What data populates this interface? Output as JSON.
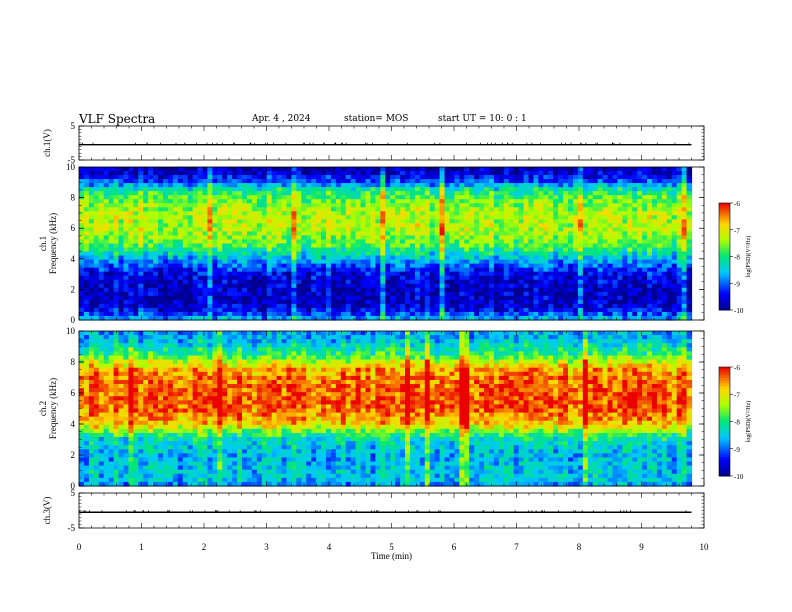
{
  "header": {
    "title": "VLF Spectra",
    "date": "Apr. 4 , 2024",
    "station": "station= MOS",
    "start": "start  UT =   10: 0  : 1"
  },
  "chart_data": [
    {
      "type": "line",
      "panel": "ch1-waveform",
      "ylabel": "ch.1(V)",
      "ylim": [
        -5,
        5
      ],
      "yticks": [
        "5",
        "-5"
      ],
      "xlim": [
        0,
        10
      ],
      "series": [
        {
          "x": [
            0,
            9.8
          ],
          "values": [
            -0.5,
            -0.5
          ]
        }
      ]
    },
    {
      "type": "heatmap",
      "panel": "ch1-spectrogram",
      "ylabel": "ch.1\nFrequency (kHz)",
      "ylim": [
        0,
        10
      ],
      "yticks": [
        "0",
        "2",
        "4",
        "6",
        "8",
        "10"
      ],
      "xlim": [
        0,
        10
      ],
      "data_end_min": 9.8,
      "colorbar": {
        "label": "log(PSD)(V²/Hz)",
        "ticks": [
          "-6",
          "-7",
          "-8",
          "-9",
          "-10"
        ],
        "range": [
          -10,
          -6
        ]
      },
      "freq_profile_khz": [
        0,
        0.5,
        1,
        2,
        3,
        3.5,
        4,
        4.5,
        5,
        6,
        7,
        8,
        8.5,
        9,
        9.5,
        10
      ],
      "freq_profile_log_psd": [
        -8.5,
        -9.3,
        -9.7,
        -9.7,
        -9.5,
        -9.1,
        -8.6,
        -8.1,
        -7.7,
        -7.3,
        -7.3,
        -7.7,
        -8.1,
        -9.0,
        -9.6,
        -9.8
      ]
    },
    {
      "type": "heatmap",
      "panel": "ch2-spectrogram",
      "ylabel": "ch.2\nFrequency (kHz)",
      "ylim": [
        0,
        10
      ],
      "yticks": [
        "0",
        "2",
        "4",
        "6",
        "8",
        "10"
      ],
      "xlim": [
        0,
        10
      ],
      "data_end_min": 9.8,
      "colorbar": {
        "label": "log(PSD)(V²/Hz)",
        "ticks": [
          "-6",
          "-7",
          "-8",
          "-9",
          "-10"
        ],
        "range": [
          -10,
          -6
        ]
      },
      "freq_profile_khz": [
        0,
        0.5,
        1,
        2,
        3,
        3.5,
        4,
        5,
        6,
        7,
        7.5,
        8,
        8.5,
        9,
        9.5,
        10
      ],
      "freq_profile_log_psd": [
        -8.8,
        -8.5,
        -8.5,
        -8.6,
        -8.3,
        -7.6,
        -6.8,
        -6.3,
        -6.3,
        -6.4,
        -6.6,
        -7.2,
        -7.9,
        -8.3,
        -8.6,
        -8.7
      ]
    },
    {
      "type": "line",
      "panel": "ch3-waveform",
      "ylabel": "ch.3(V)",
      "ylim": [
        -5,
        5
      ],
      "yticks": [
        "5",
        "-5"
      ],
      "xlim": [
        0,
        10
      ],
      "xticks": [
        "0",
        "1",
        "2",
        "3",
        "4",
        "5",
        "6",
        "7",
        "8",
        "9",
        "10"
      ],
      "xlabel": "Time (min)",
      "series": [
        {
          "x": [
            0,
            9.8
          ],
          "values": [
            -0.5,
            -0.5
          ]
        }
      ]
    }
  ]
}
